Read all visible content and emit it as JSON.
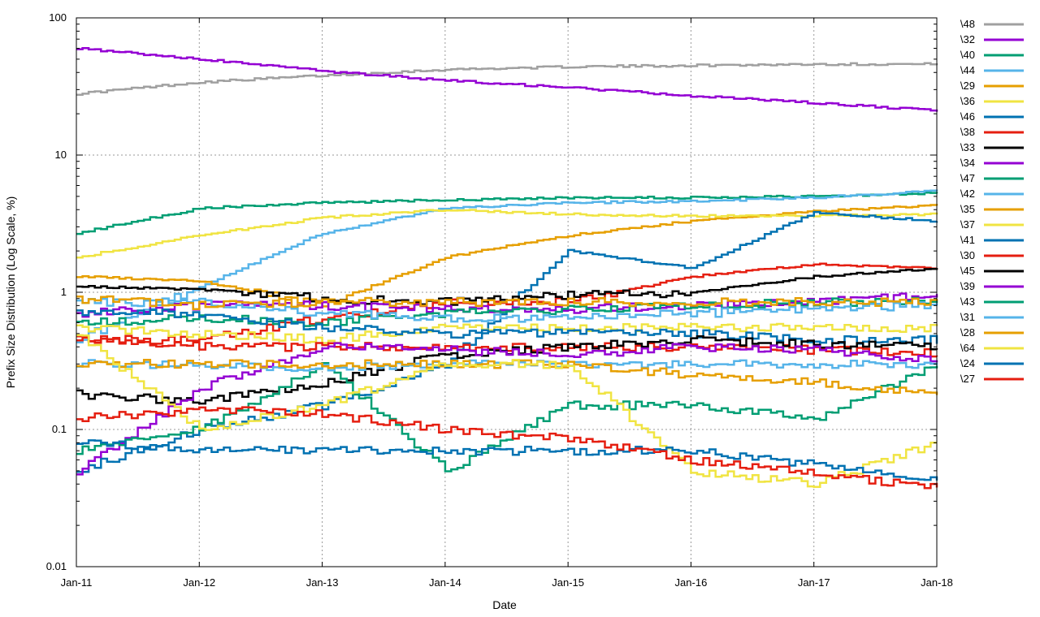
{
  "chart_data": {
    "type": "line",
    "xlabel": "Date",
    "ylabel": "Prefix Size Distribution (Log Scale, %)",
    "x_ticks": [
      "Jan-11",
      "Jan-12",
      "Jan-13",
      "Jan-14",
      "Jan-15",
      "Jan-16",
      "Jan-17",
      "Jan-18"
    ],
    "y_ticks": [
      0.01,
      0.1,
      1,
      10,
      100
    ],
    "y_tick_labels": [
      "0.01",
      "0.1",
      "1",
      "10",
      "100"
    ],
    "xlim": [
      "Jan-11",
      "Jan-18"
    ],
    "ylim": [
      0.01,
      100
    ],
    "yscale": "log",
    "grid": true,
    "legend_position": "right",
    "x": [
      "Jan-11",
      "Jan-12",
      "Jan-13",
      "Jan-14",
      "Jan-15",
      "Jan-16",
      "Jan-17",
      "Jan-18"
    ],
    "series": [
      {
        "name": "\\48",
        "color": "#a0a0a0",
        "values": [
          28,
          34,
          38,
          42,
          44,
          45,
          46,
          46
        ]
      },
      {
        "name": "\\32",
        "color": "#9400d3",
        "values": [
          60,
          50,
          41,
          35,
          31,
          27,
          24,
          21
        ]
      },
      {
        "name": "\\40",
        "color": "#009e73",
        "values": [
          2.7,
          4.1,
          4.5,
          4.7,
          4.9,
          4.9,
          5.0,
          5.3
        ]
      },
      {
        "name": "\\44",
        "color": "#56b4e9",
        "values": [
          0.45,
          1.1,
          2.7,
          4.1,
          4.5,
          4.6,
          4.9,
          5.5
        ]
      },
      {
        "name": "\\29",
        "color": "#e69f00",
        "values": [
          1.3,
          1.2,
          0.8,
          1.8,
          2.6,
          3.3,
          3.9,
          4.3
        ]
      },
      {
        "name": "\\36",
        "color": "#f0e442",
        "values": [
          1.8,
          2.6,
          3.5,
          4.0,
          3.7,
          3.6,
          3.6,
          3.7
        ]
      },
      {
        "name": "\\46",
        "color": "#0072b2",
        "values": [
          0.05,
          0.1,
          0.15,
          0.3,
          2.0,
          1.5,
          3.8,
          3.3
        ]
      },
      {
        "name": "\\38",
        "color": "#e51e10",
        "values": [
          0.45,
          0.45,
          0.65,
          0.85,
          0.85,
          1.3,
          1.6,
          1.5
        ]
      },
      {
        "name": "\\33",
        "color": "#000000",
        "values": [
          1.1,
          1.05,
          0.9,
          0.85,
          0.95,
          1.0,
          1.3,
          1.5
        ]
      },
      {
        "name": "\\34",
        "color": "#9400d3",
        "values": [
          0.7,
          0.8,
          0.8,
          0.75,
          0.75,
          0.8,
          0.85,
          0.95
        ]
      },
      {
        "name": "\\47",
        "color": "#009e73",
        "values": [
          0.6,
          0.65,
          0.6,
          0.7,
          0.75,
          0.8,
          0.85,
          0.85
        ]
      },
      {
        "name": "\\42",
        "color": "#56b4e9",
        "values": [
          0.85,
          0.85,
          0.7,
          0.65,
          0.65,
          0.7,
          0.75,
          0.8
        ]
      },
      {
        "name": "\\35",
        "color": "#e69f00",
        "values": [
          0.9,
          0.8,
          0.85,
          0.85,
          0.85,
          0.85,
          0.85,
          0.85
        ]
      },
      {
        "name": "\\37",
        "color": "#f0e442",
        "values": [
          0.55,
          0.5,
          0.45,
          0.55,
          0.55,
          0.55,
          0.55,
          0.55
        ]
      },
      {
        "name": "\\41",
        "color": "#0072b2",
        "values": [
          0.7,
          0.7,
          0.55,
          0.5,
          0.5,
          0.5,
          0.45,
          0.45
        ]
      },
      {
        "name": "\\30",
        "color": "#e51e10",
        "values": [
          0.45,
          0.4,
          0.4,
          0.4,
          0.4,
          0.4,
          0.38,
          0.36
        ]
      },
      {
        "name": "\\45",
        "color": "#000000",
        "values": [
          0.18,
          0.16,
          0.22,
          0.35,
          0.4,
          0.45,
          0.42,
          0.4
        ]
      },
      {
        "name": "\\39",
        "color": "#9400d3",
        "values": [
          0.05,
          0.2,
          0.4,
          0.38,
          0.35,
          0.4,
          0.38,
          0.32
        ]
      },
      {
        "name": "\\43",
        "color": "#009e73",
        "values": [
          0.07,
          0.1,
          0.3,
          0.05,
          0.15,
          0.15,
          0.12,
          0.3
        ]
      },
      {
        "name": "\\31",
        "color": "#56b4e9",
        "values": [
          0.3,
          0.3,
          0.28,
          0.3,
          0.3,
          0.3,
          0.3,
          0.3
        ]
      },
      {
        "name": "\\28",
        "color": "#e69f00",
        "values": [
          0.3,
          0.3,
          0.3,
          0.3,
          0.3,
          0.25,
          0.22,
          0.18
        ]
      },
      {
        "name": "\\64",
        "color": "#f0e442",
        "values": [
          0.5,
          0.1,
          0.15,
          0.3,
          0.3,
          0.05,
          0.04,
          0.08
        ]
      },
      {
        "name": "\\24",
        "color": "#0072b2",
        "values": [
          0.08,
          0.07,
          0.07,
          0.07,
          0.07,
          0.07,
          0.055,
          0.042
        ]
      },
      {
        "name": "\\27",
        "color": "#e51e10",
        "values": [
          0.12,
          0.14,
          0.13,
          0.1,
          0.085,
          0.06,
          0.048,
          0.037
        ]
      }
    ]
  }
}
